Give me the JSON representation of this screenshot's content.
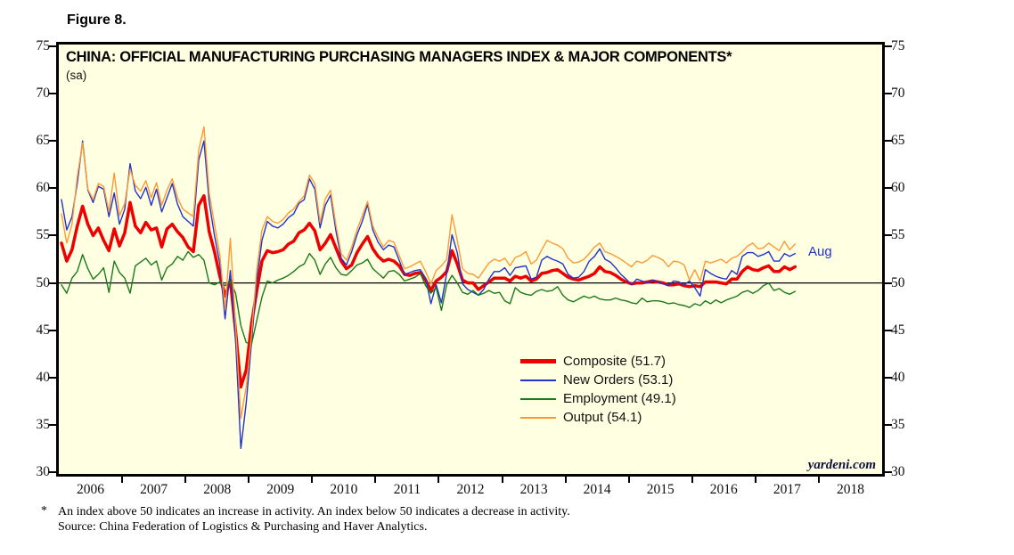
{
  "figure_label": "Figure 8.",
  "chart_data": {
    "type": "line",
    "title": "CHINA: OFFICIAL MANUFACTURING PURCHASING MANAGERS INDEX & MAJOR COMPONENTS*",
    "subtitle": "(sa)",
    "frequency": "monthly",
    "x_start": "2006-01",
    "x_end": "2017-08",
    "x_span_years": 13,
    "x_labels": [
      "2006",
      "2007",
      "2008",
      "2009",
      "2010",
      "2011",
      "2012",
      "2013",
      "2014",
      "2015",
      "2016",
      "2017",
      "2018"
    ],
    "ylim": [
      30,
      75
    ],
    "y_ticks": [
      75,
      70,
      65,
      60,
      55,
      50,
      45,
      40,
      35,
      30
    ],
    "reference_line": 50,
    "background_color": "#FFFFE1",
    "grid": "reference-line-only",
    "legend_position": "inside-lower-middle",
    "last_point_label": "Aug",
    "watermark": "yardeni.com",
    "series": [
      {
        "key": "composite",
        "name": "Composite",
        "legend": "Composite (51.7)",
        "last_value": 51.7,
        "color": "#EE0000",
        "width": 3.5,
        "values": [
          54.2,
          52.3,
          53.5,
          56.0,
          58.1,
          56.2,
          55.0,
          55.8,
          54.5,
          53.4,
          55.7,
          53.9,
          55.3,
          58.5,
          56.0,
          55.3,
          56.4,
          55.6,
          55.8,
          53.8,
          55.7,
          56.2,
          55.4,
          54.8,
          53.8,
          53.3,
          58.2,
          59.2,
          55.4,
          53.3,
          50.7,
          48.6,
          50.3,
          44.9,
          39.0,
          40.8,
          45.6,
          49.1,
          52.3,
          53.4,
          53.2,
          53.3,
          53.5,
          54.1,
          54.4,
          55.3,
          55.6,
          56.3,
          55.5,
          53.5,
          54.2,
          55.1,
          53.7,
          52.3,
          51.5,
          51.9,
          53.2,
          54.1,
          54.9,
          53.6,
          52.8,
          52.3,
          52.5,
          52.3,
          51.8,
          50.9,
          50.8,
          51.0,
          51.1,
          50.3,
          49.2,
          50.2,
          50.6,
          51.2,
          53.4,
          52.0,
          50.3,
          50.0,
          50.0,
          49.3,
          49.7,
          50.1,
          50.5,
          50.5,
          50.5,
          50.2,
          50.7,
          50.5,
          50.7,
          50.2,
          50.4,
          51.0,
          51.1,
          51.3,
          51.4,
          51.0,
          50.6,
          50.4,
          50.3,
          50.5,
          50.7,
          51.0,
          51.7,
          51.2,
          51.1,
          50.8,
          50.4,
          50.1,
          49.9,
          50.0,
          50.0,
          50.1,
          50.2,
          50.1,
          50.0,
          49.8,
          49.8,
          49.9,
          49.7,
          49.6,
          49.7,
          49.6,
          50.1,
          50.1,
          50.1,
          50.0,
          49.9,
          50.4,
          50.4,
          51.2,
          51.7,
          51.4,
          51.3,
          51.6,
          51.8,
          51.2,
          51.2,
          51.7,
          51.4,
          51.7
        ]
      },
      {
        "key": "new-orders",
        "name": "New Orders",
        "legend": "New Orders (53.1)",
        "last_value": 53.1,
        "color": "#2233CC",
        "width": 1.4,
        "values": [
          58.8,
          55.6,
          57.0,
          60.5,
          65.0,
          59.8,
          58.5,
          60.2,
          59.9,
          57.0,
          59.5,
          56.2,
          57.8,
          62.6,
          59.7,
          58.9,
          60.1,
          58.2,
          59.9,
          57.5,
          59.0,
          60.5,
          58.3,
          57.0,
          56.5,
          56.0,
          63.0,
          65.0,
          58.5,
          55.0,
          52.0,
          46.2,
          51.3,
          44.0,
          32.5,
          37.3,
          43.6,
          50.2,
          54.5,
          56.5,
          56.0,
          55.8,
          56.2,
          56.9,
          57.3,
          58.4,
          58.8,
          61.0,
          59.9,
          55.8,
          58.2,
          59.3,
          55.5,
          52.6,
          51.9,
          53.3,
          55.1,
          56.5,
          58.3,
          55.6,
          54.3,
          53.5,
          54.0,
          53.8,
          52.4,
          50.9,
          51.1,
          51.3,
          51.4,
          50.5,
          47.8,
          49.8,
          47.9,
          51.0,
          55.1,
          53.2,
          49.9,
          49.3,
          49.0,
          48.7,
          49.3,
          50.4,
          51.2,
          51.2,
          51.6,
          50.8,
          51.6,
          51.7,
          51.8,
          50.4,
          50.6,
          52.4,
          52.8,
          52.5,
          52.3,
          52.0,
          50.9,
          50.5,
          50.6,
          51.2,
          52.3,
          52.8,
          53.6,
          52.5,
          52.2,
          51.6,
          50.9,
          50.4,
          49.8,
          50.4,
          50.2,
          50.0,
          50.3,
          50.1,
          49.9,
          49.7,
          50.2,
          50.1,
          49.8,
          50.2,
          49.5,
          48.6,
          51.4,
          51.0,
          50.7,
          50.5,
          50.4,
          51.3,
          50.9,
          52.8,
          53.2,
          53.2,
          52.8,
          53.0,
          53.3,
          52.3,
          52.3,
          53.1,
          52.8,
          53.1
        ]
      },
      {
        "key": "employment",
        "name": "Employment",
        "legend": "Employment (49.1)",
        "last_value": 49.1,
        "color": "#1A7A1A",
        "width": 1.4,
        "values": [
          49.8,
          48.9,
          50.5,
          51.2,
          53.0,
          51.5,
          50.4,
          50.9,
          51.6,
          49.0,
          52.3,
          51.1,
          50.5,
          48.9,
          51.8,
          52.2,
          52.6,
          51.9,
          52.3,
          50.3,
          51.6,
          52.0,
          52.8,
          52.4,
          53.3,
          52.7,
          53.0,
          52.4,
          50.0,
          49.8,
          50.1,
          49.7,
          50.2,
          48.9,
          45.5,
          43.7,
          43.5,
          46.0,
          48.5,
          50.2,
          50.0,
          50.3,
          50.5,
          50.8,
          51.2,
          51.7,
          52.0,
          53.1,
          52.4,
          50.9,
          52.0,
          52.7,
          51.6,
          50.9,
          50.8,
          51.3,
          51.9,
          52.1,
          52.5,
          51.5,
          51.0,
          50.5,
          51.2,
          51.3,
          50.9,
          50.2,
          50.4,
          50.6,
          51.0,
          49.7,
          48.9,
          49.5,
          47.1,
          49.8,
          50.8,
          50.0,
          49.0,
          48.8,
          49.2,
          48.7,
          48.9,
          49.2,
          48.9,
          49.0,
          48.1,
          47.8,
          49.5,
          49.0,
          48.8,
          48.7,
          49.1,
          49.3,
          49.1,
          49.2,
          49.6,
          48.7,
          48.2,
          48.0,
          48.3,
          48.6,
          48.4,
          48.6,
          48.3,
          48.2,
          48.2,
          48.4,
          48.2,
          48.1,
          47.9,
          47.8,
          48.4,
          48.0,
          48.1,
          48.1,
          48.0,
          47.8,
          47.9,
          47.7,
          47.6,
          47.4,
          47.8,
          47.6,
          48.1,
          47.8,
          48.2,
          47.9,
          48.2,
          48.4,
          48.6,
          49.0,
          49.2,
          48.9,
          49.2,
          49.7,
          50.0,
          49.2,
          49.4,
          49.0,
          48.8,
          49.1
        ]
      },
      {
        "key": "output",
        "name": "Output",
        "legend": "Output (54.1)",
        "last_value": 54.1,
        "color": "#FF9933",
        "width": 1.4,
        "values": [
          57.3,
          54.2,
          56.2,
          61.2,
          64.8,
          59.9,
          58.8,
          60.5,
          60.2,
          57.5,
          61.6,
          57.1,
          58.4,
          62.0,
          60.3,
          59.7,
          60.8,
          59.0,
          60.6,
          58.2,
          59.8,
          61.0,
          59.0,
          57.8,
          57.4,
          57.0,
          64.0,
          66.5,
          59.5,
          56.2,
          53.0,
          47.2,
          54.7,
          45.5,
          35.7,
          39.0,
          44.4,
          51.3,
          55.6,
          57.0,
          56.5,
          56.3,
          56.7,
          57.4,
          57.8,
          58.6,
          59.2,
          61.4,
          60.5,
          56.4,
          58.9,
          59.8,
          56.1,
          53.1,
          52.4,
          53.8,
          55.6,
          57.1,
          58.6,
          56.0,
          54.8,
          53.8,
          54.5,
          54.3,
          52.9,
          51.5,
          51.7,
          52.0,
          52.3,
          51.2,
          49.9,
          51.3,
          51.8,
          52.5,
          57.2,
          54.5,
          51.5,
          51.0,
          50.9,
          50.5,
          51.3,
          52.1,
          52.5,
          52.3,
          52.6,
          51.8,
          52.7,
          52.9,
          53.3,
          52.0,
          52.4,
          53.5,
          54.5,
          54.2,
          54.0,
          53.6,
          52.6,
          52.1,
          52.2,
          52.5,
          53.1,
          53.8,
          54.2,
          53.3,
          53.1,
          52.8,
          52.5,
          52.1,
          51.7,
          52.3,
          52.1,
          52.4,
          52.9,
          52.7,
          52.4,
          51.7,
          52.3,
          52.2,
          51.9,
          50.3,
          51.4,
          50.2,
          52.3,
          52.1,
          52.3,
          52.5,
          52.1,
          52.6,
          52.8,
          53.3,
          53.9,
          54.2,
          53.6,
          53.7,
          54.2,
          53.8,
          53.4,
          54.4,
          53.5,
          54.1
        ]
      }
    ]
  },
  "footnote": {
    "marker": "*",
    "line1": "An index above 50 indicates an increase in activity. An index below 50 indicates a decrease in activity.",
    "line2": "Source: China Federation of Logistics & Purchasing and Haver Analytics."
  }
}
